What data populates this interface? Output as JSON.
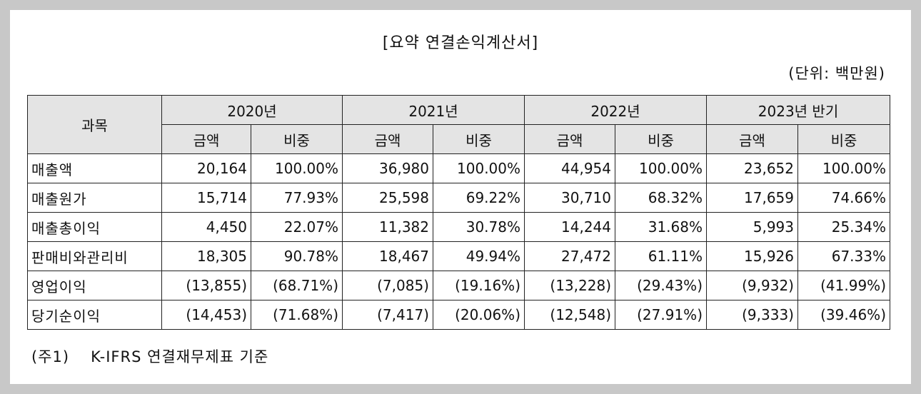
{
  "title": "[요약 연결손익계산서]",
  "unit": "(단위: 백만원)",
  "table": {
    "subject_header": "과목",
    "periods": [
      "2020년",
      "2021년",
      "2022년",
      "2023년 반기"
    ],
    "sub_headers": {
      "amount": "금액",
      "ratio": "비중"
    },
    "rows": [
      {
        "label": "매출액",
        "values": [
          "20,164",
          "100.00%",
          "36,980",
          "100.00%",
          "44,954",
          "100.00%",
          "23,652",
          "100.00%"
        ]
      },
      {
        "label": "매출원가",
        "values": [
          "15,714",
          "77.93%",
          "25,598",
          "69.22%",
          "30,710",
          "68.32%",
          "17,659",
          "74.66%"
        ]
      },
      {
        "label": "매출총이익",
        "values": [
          "4,450",
          "22.07%",
          "11,382",
          "30.78%",
          "14,244",
          "31.68%",
          "5,993",
          "25.34%"
        ]
      },
      {
        "label": "판매비와관리비",
        "values": [
          "18,305",
          "90.78%",
          "18,467",
          "49.94%",
          "27,472",
          "61.11%",
          "15,926",
          "67.33%"
        ]
      },
      {
        "label": "영업이익",
        "values": [
          "(13,855)",
          "(68.71%)",
          "(7,085)",
          "(19.16%)",
          "(13,228)",
          "(29.43%)",
          "(9,932)",
          "(41.99%)"
        ]
      },
      {
        "label": "당기순이익",
        "values": [
          "(14,453)",
          "(71.68%)",
          "(7,417)",
          "(20.06%)",
          "(12,548)",
          "(27.91%)",
          "(9,333)",
          "(39.46%)"
        ]
      }
    ]
  },
  "note": {
    "marker": "(주1)",
    "text": "K-IFRS 연결재무제표 기준"
  },
  "colors": {
    "header_bg": "#e4e4e4",
    "border": "#222222",
    "page_bg": "#c8c8c8"
  }
}
